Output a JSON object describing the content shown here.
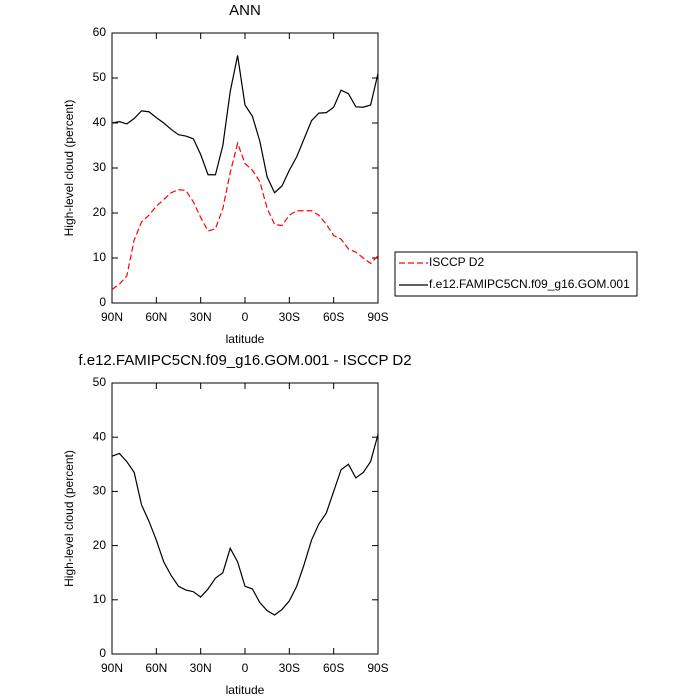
{
  "chart_data": [
    {
      "type": "line",
      "title": "ANN",
      "x_label": "latitude",
      "y_label": "High-level cloud (percent)",
      "x": [
        90,
        85,
        80,
        75,
        70,
        65,
        60,
        55,
        50,
        45,
        40,
        35,
        30,
        25,
        20,
        15,
        10,
        5,
        0,
        -5,
        -10,
        -15,
        -20,
        -25,
        -30,
        -35,
        -40,
        -45,
        -50,
        -55,
        -60,
        -65,
        -70,
        -75,
        -80,
        -85,
        -90
      ],
      "series": [
        {
          "name": "ISCCP D2",
          "color": "#ff0000",
          "dash": true,
          "values": [
            3,
            4.2,
            6,
            14,
            18,
            19.5,
            21.5,
            23,
            24.5,
            25.2,
            25,
            22.5,
            19,
            16,
            16.5,
            21,
            29,
            35.5,
            31,
            29.5,
            27,
            21,
            17.5,
            17.2,
            19.5,
            20.5,
            20.5,
            20.5,
            19.5,
            17.5,
            15,
            14.2,
            12,
            11.3,
            10,
            8.8,
            10.5
          ]
        },
        {
          "name": "f.e12.FAMIPC5CN.f09_g16.GOM.001",
          "color": "#000000",
          "dash": false,
          "values": [
            40,
            40.3,
            39.8,
            41,
            42.7,
            42.5,
            41.2,
            40,
            38.6,
            37.4,
            37.1,
            36.5,
            33,
            28.5,
            28.5,
            35,
            47,
            55,
            44,
            41.5,
            36,
            28,
            24.5,
            26,
            29.5,
            32.5,
            36.5,
            40.5,
            42.2,
            42.3,
            43.5,
            47.3,
            46.5,
            43.6,
            43.5,
            44,
            51
          ]
        }
      ],
      "xlim": [
        90,
        -90
      ],
      "xticks": [
        {
          "value": 90,
          "label": "90N"
        },
        {
          "value": 60,
          "label": "60N"
        },
        {
          "value": 30,
          "label": "30N"
        },
        0,
        {
          "value": -30,
          "label": "30S"
        },
        {
          "value": -60,
          "label": "60S"
        },
        {
          "value": -90,
          "label": "90S"
        }
      ],
      "ylim": [
        0,
        60
      ],
      "yticks": [
        0,
        10,
        20,
        30,
        40,
        50,
        60
      ],
      "legend": "right"
    },
    {
      "type": "line",
      "title": "f.e12.FAMIPC5CN.f09_g16.GOM.001 - ISCCP D2",
      "x_label": "latitude",
      "y_label": "High-level cloud (percent)",
      "x": [
        90,
        85,
        80,
        75,
        70,
        65,
        60,
        55,
        50,
        45,
        40,
        35,
        30,
        25,
        20,
        15,
        10,
        5,
        0,
        -5,
        -10,
        -15,
        -20,
        -25,
        -30,
        -35,
        -40,
        -45,
        -50,
        -55,
        -60,
        -65,
        -70,
        -75,
        -80,
        -85,
        -90
      ],
      "series": [
        {
          "color": "#000000",
          "dash": false,
          "values": [
            36.5,
            37,
            35.5,
            33.5,
            27.5,
            24.5,
            21,
            17,
            14.5,
            12.5,
            11.8,
            11.5,
            10.5,
            12,
            14,
            15,
            19.5,
            17,
            12.5,
            12,
            9.5,
            8,
            7.2,
            8.2,
            9.8,
            12.5,
            16.5,
            21,
            24,
            26,
            30,
            34,
            35,
            32.5,
            33.5,
            35.5,
            40.5
          ]
        }
      ],
      "xlim": [
        90,
        -90
      ],
      "xticks": [
        {
          "value": 90,
          "label": "90N"
        },
        {
          "value": 60,
          "label": "60N"
        },
        {
          "value": 30,
          "label": "30N"
        },
        0,
        {
          "value": -30,
          "label": "30S"
        },
        {
          "value": -60,
          "label": "60S"
        },
        {
          "value": -90,
          "label": "90S"
        }
      ],
      "ylim": [
        0,
        50
      ],
      "yticks": [
        0,
        10,
        20,
        30,
        40,
        50
      ]
    }
  ]
}
